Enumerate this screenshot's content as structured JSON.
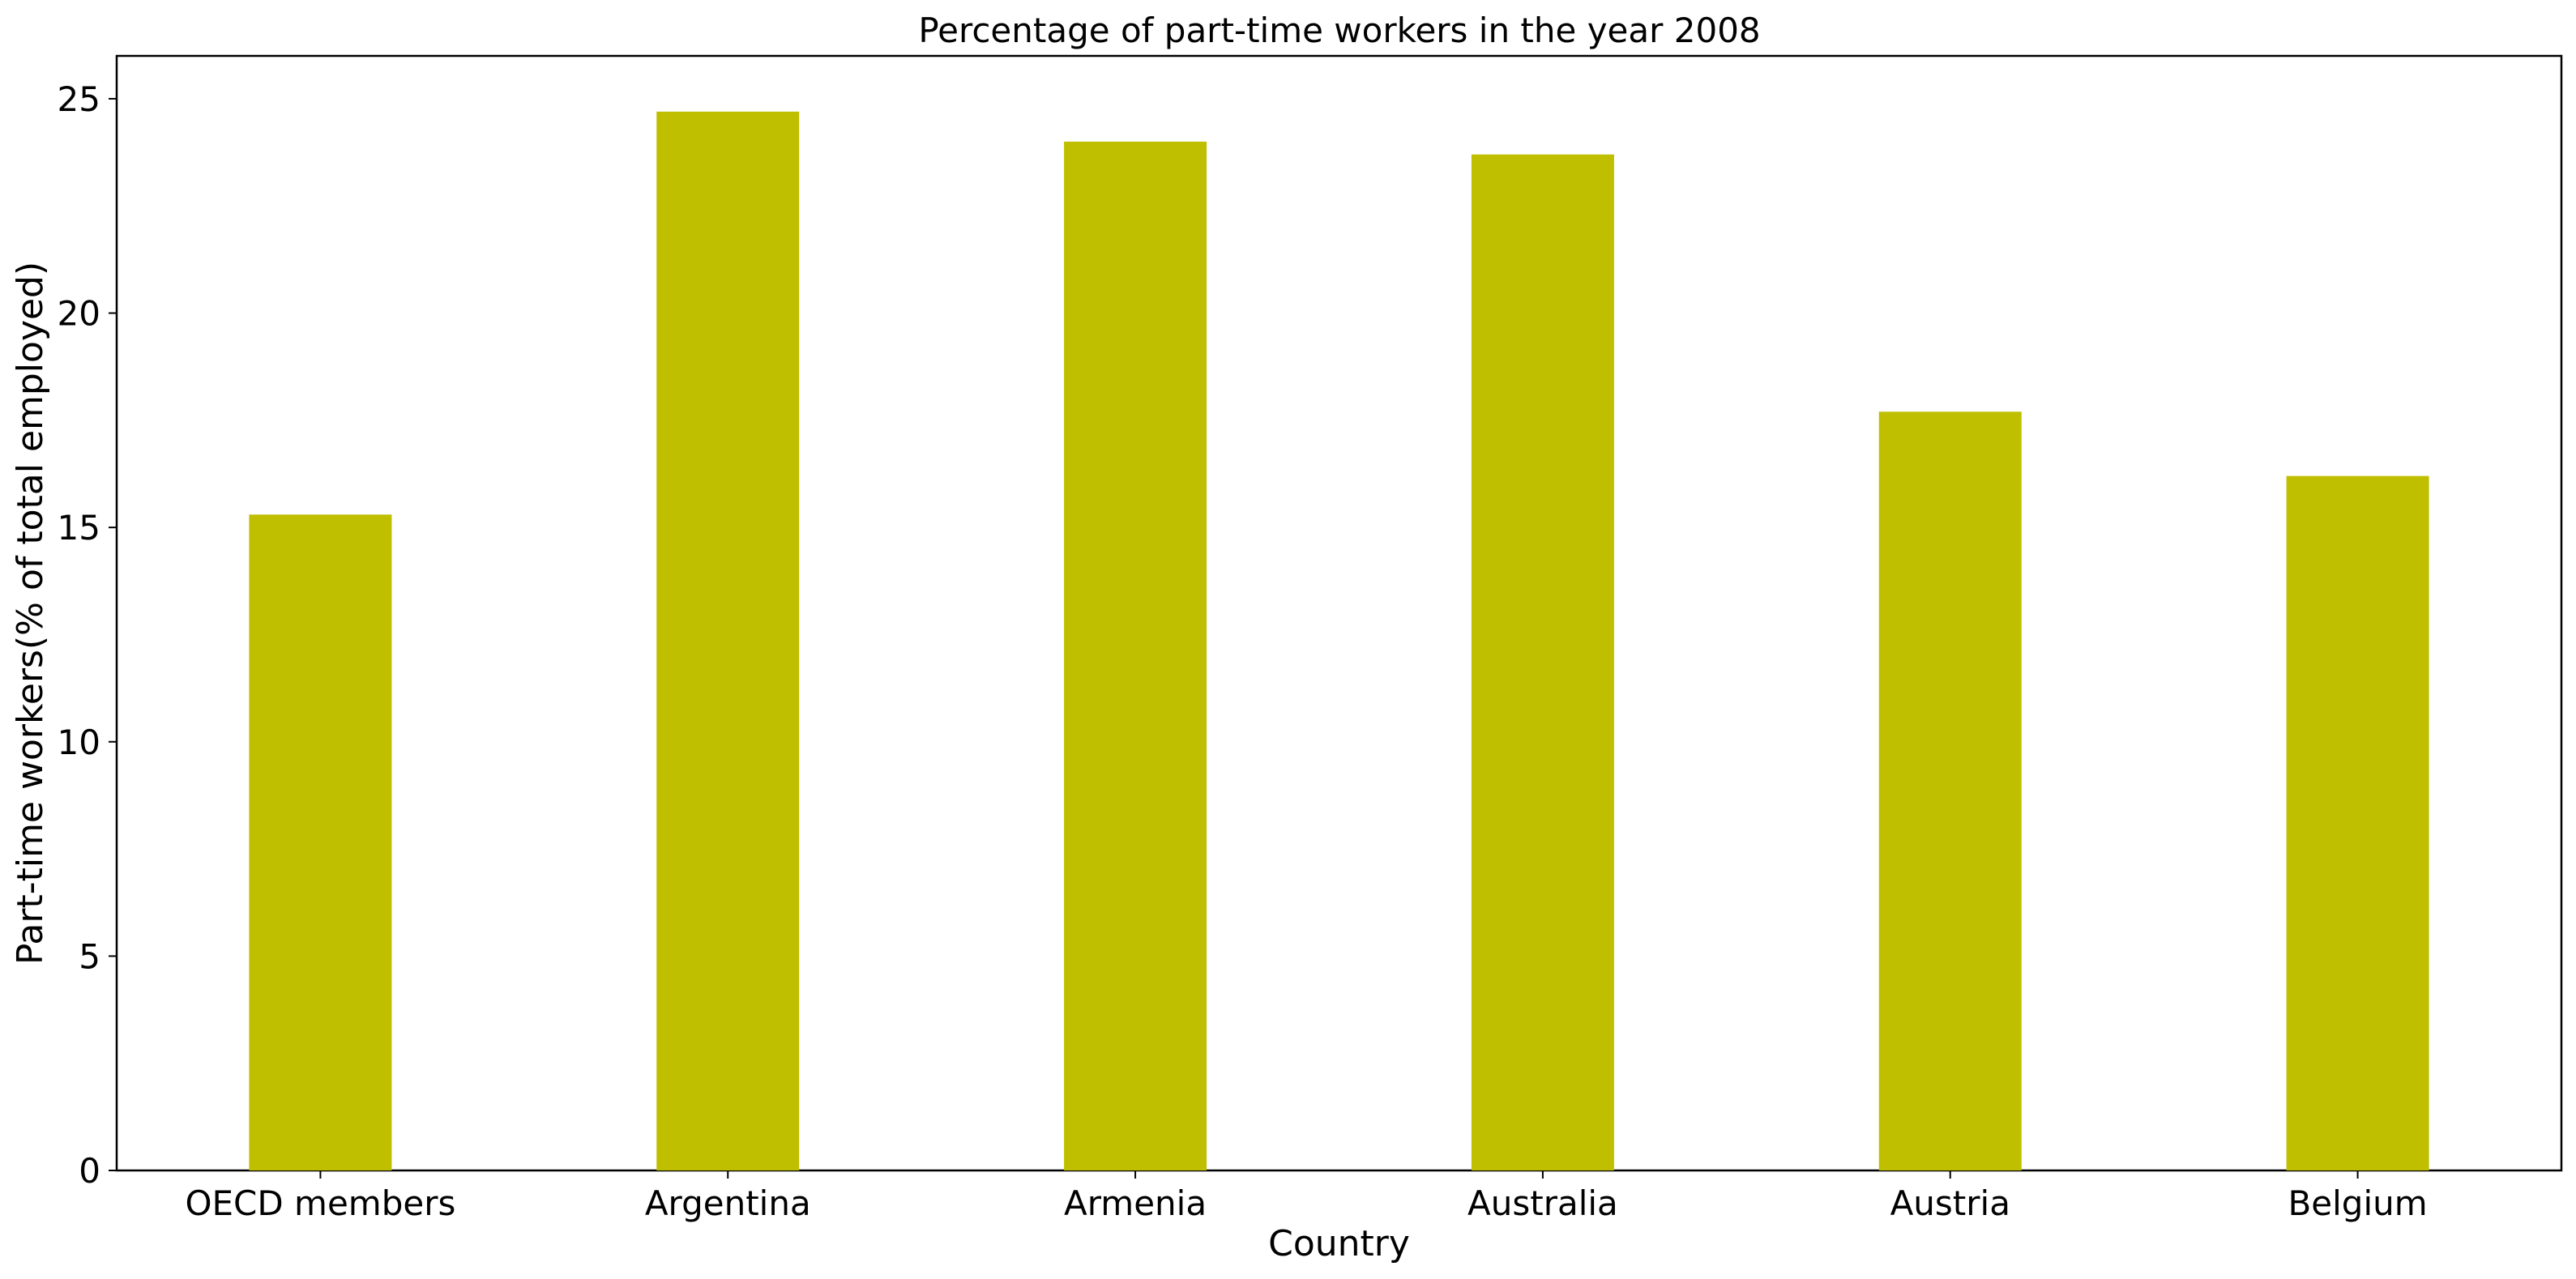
{
  "chart_data": {
    "type": "bar",
    "title": "Percentage of part-time workers in the year 2008",
    "xlabel": "Country",
    "ylabel": "Part-time workers(% of total employed)",
    "categories": [
      "OECD members",
      "Argentina",
      "Armenia",
      "Australia",
      "Austria",
      "Belgium"
    ],
    "values": [
      15.3,
      24.7,
      24.0,
      23.7,
      17.7,
      16.2
    ],
    "ylim": [
      0,
      26
    ],
    "yticks": [
      0,
      5,
      10,
      15,
      20,
      25
    ],
    "bar_color": "#bfbf00",
    "grid": false,
    "legend": "none"
  }
}
